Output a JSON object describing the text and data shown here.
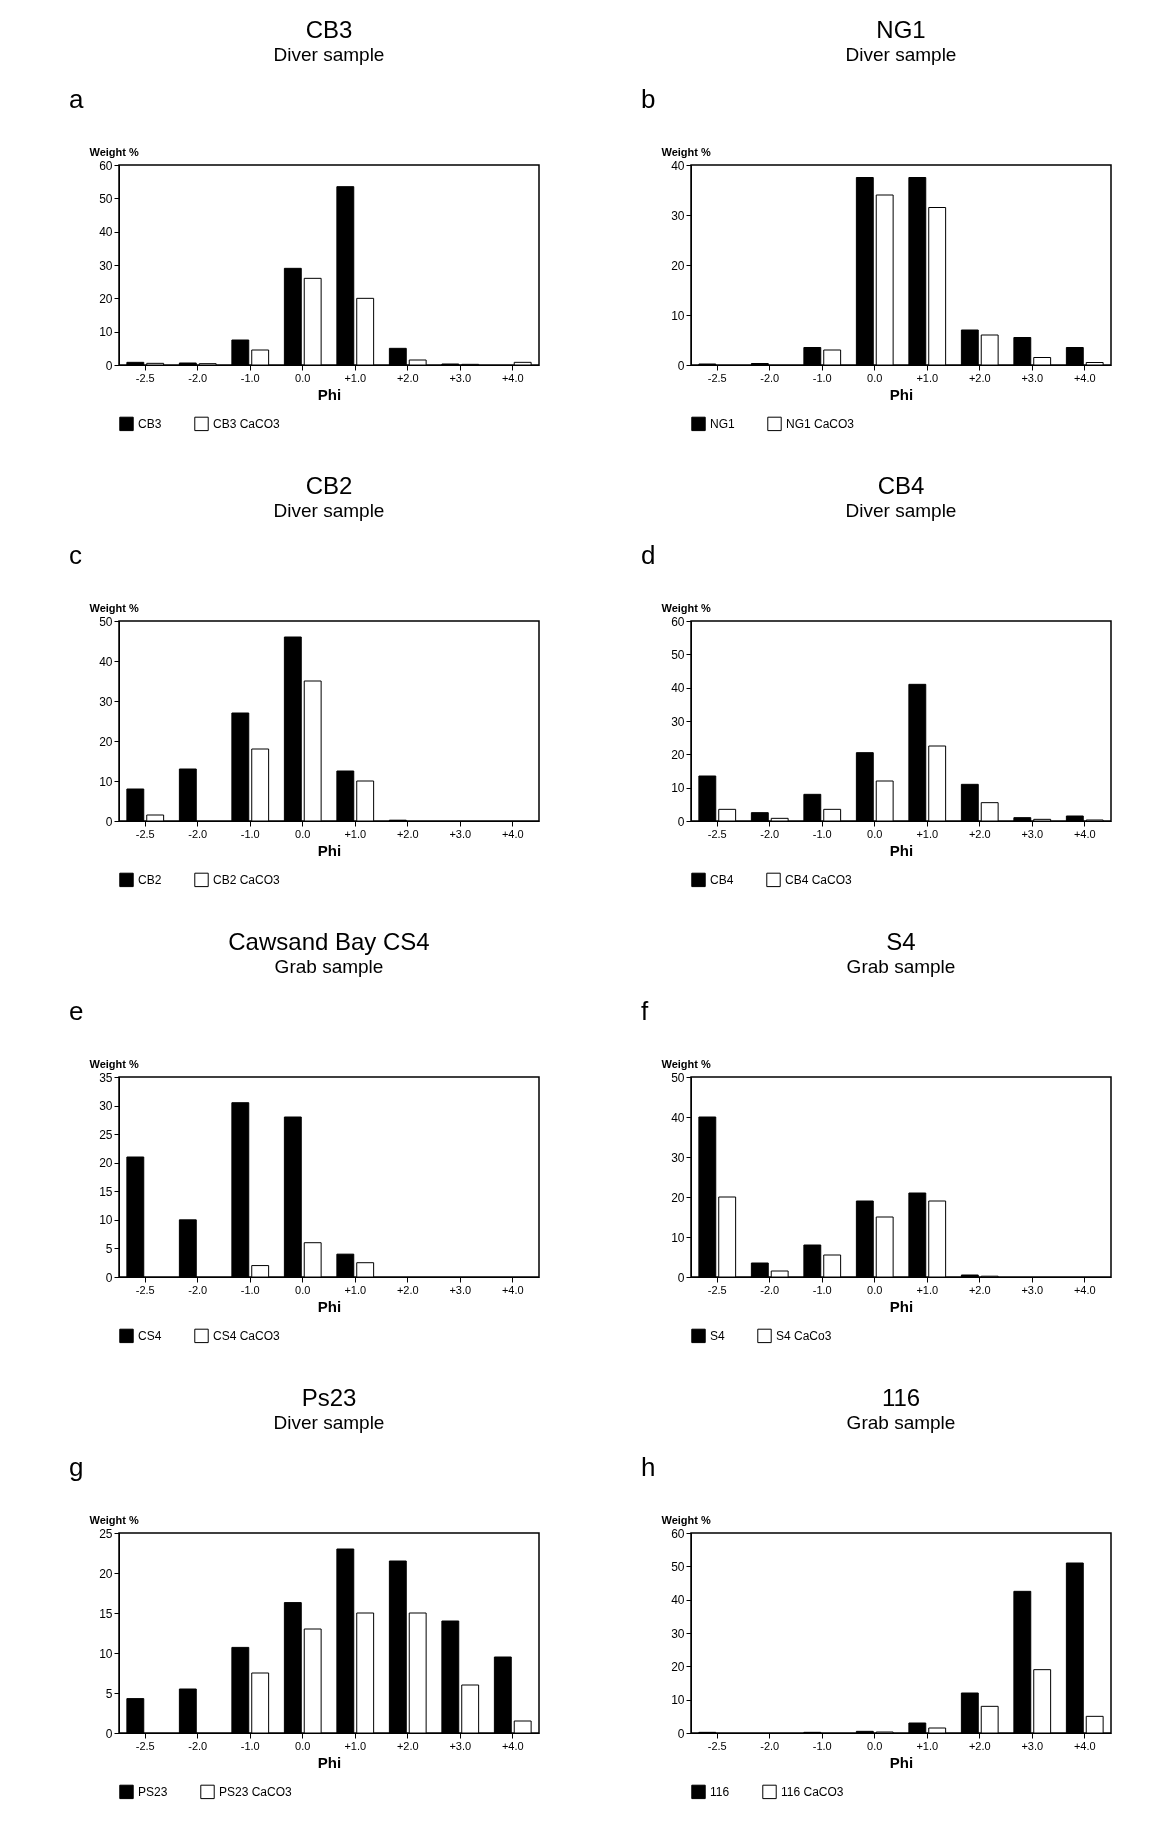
{
  "chart_data": [
    {
      "type": "bar",
      "title": "CB3",
      "subtitle": "Diver sample",
      "annotations": [
        "a"
      ],
      "xlabel": "Phi",
      "ylabel": "Weight %",
      "categories": [
        "-2.5",
        "-2.0",
        "-1.0",
        "0.0",
        "+1.0",
        "+2.0",
        "+3.0",
        "+4.0"
      ],
      "ylim": [
        0,
        60
      ],
      "yticks": [
        0,
        10,
        20,
        30,
        40,
        50,
        60
      ],
      "legend": "bottom",
      "series": [
        {
          "name": "CB3",
          "color": "#000000",
          "values": [
            0.8,
            0.6,
            7.5,
            29,
            53.5,
            5,
            0.3,
            0
          ]
        },
        {
          "name": "CB3 CaCO3",
          "color": "#ffffff",
          "values": [
            0.5,
            0.4,
            4.5,
            26,
            20,
            1.5,
            0.2,
            0.8
          ]
        }
      ]
    },
    {
      "type": "bar",
      "title": "NG1",
      "subtitle": "Diver sample",
      "annotations": [
        "b"
      ],
      "xlabel": "Phi",
      "ylabel": "Weight %",
      "categories": [
        "-2.5",
        "-2.0",
        "-1.0",
        "0.0",
        "+1.0",
        "+2.0",
        "+3.0",
        "+4.0"
      ],
      "ylim": [
        0,
        40
      ],
      "yticks": [
        0,
        10,
        20,
        30,
        40
      ],
      "legend": "bottom",
      "series": [
        {
          "name": "NG1",
          "color": "#000000",
          "values": [
            0.2,
            0.3,
            3.5,
            37.5,
            37.5,
            7,
            5.5,
            3.5
          ]
        },
        {
          "name": "NG1 CaCO3",
          "color": "#ffffff",
          "values": [
            0,
            null,
            3,
            34,
            31.5,
            6,
            1.5,
            0.5
          ]
        }
      ]
    },
    {
      "type": "bar",
      "title": "CB2",
      "subtitle": "Diver sample",
      "annotations": [
        "c"
      ],
      "xlabel": "Phi",
      "ylabel": "Weight %",
      "categories": [
        "-2.5",
        "-2.0",
        "-1.0",
        "0.0",
        "+1.0",
        "+2.0",
        "+3.0",
        "+4.0"
      ],
      "ylim": [
        0,
        50
      ],
      "yticks": [
        0,
        10,
        20,
        30,
        40,
        50
      ],
      "legend": "bottom",
      "series": [
        {
          "name": "CB2",
          "color": "#000000",
          "values": [
            8,
            13,
            27,
            46,
            12.5,
            0.2,
            0,
            0
          ]
        },
        {
          "name": "CB2 CaCO3",
          "color": "#ffffff",
          "values": [
            1.5,
            0,
            18,
            35,
            10,
            0,
            0,
            0
          ]
        }
      ]
    },
    {
      "type": "bar",
      "title": "CB4",
      "subtitle": "Diver sample",
      "annotations": [
        "d"
      ],
      "xlabel": "Phi",
      "ylabel": "Weight %",
      "categories": [
        "-2.5",
        "-2.0",
        "-1.0",
        "0.0",
        "+1.0",
        "+2.0",
        "+3.0",
        "+4.0"
      ],
      "ylim": [
        0,
        60
      ],
      "yticks": [
        0,
        10,
        20,
        30,
        40,
        50,
        60
      ],
      "legend": "bottom",
      "series": [
        {
          "name": "CB4",
          "color": "#000000",
          "values": [
            13.5,
            2.5,
            8,
            20.5,
            41,
            11,
            1,
            1.5
          ]
        },
        {
          "name": "CB4 CaCO3",
          "color": "#ffffff",
          "values": [
            3.5,
            0.8,
            3.5,
            12,
            22.5,
            5.5,
            0.5,
            0.3
          ]
        }
      ]
    },
    {
      "type": "bar",
      "title": "Cawsand Bay CS4",
      "subtitle": "Grab sample",
      "annotations": [
        "e"
      ],
      "xlabel": "Phi",
      "ylabel": "Weight %",
      "categories": [
        "-2.5",
        "-2.0",
        "-1.0",
        "0.0",
        "+1.0",
        "+2.0",
        "+3.0",
        "+4.0"
      ],
      "ylim": [
        0,
        35
      ],
      "yticks": [
        0,
        5,
        10,
        15,
        20,
        25,
        30,
        35
      ],
      "legend": "bottom",
      "series": [
        {
          "name": "CS4",
          "color": "#000000",
          "values": [
            21,
            10,
            30.5,
            28,
            4,
            0,
            0,
            0
          ]
        },
        {
          "name": "CS4 CaCO3",
          "color": "#ffffff",
          "values": [
            0,
            0,
            2,
            6,
            2.5,
            0,
            0,
            0
          ]
        }
      ]
    },
    {
      "type": "bar",
      "title": "S4",
      "subtitle": "Grab sample",
      "annotations": [
        "f"
      ],
      "xlabel": "Phi",
      "ylabel": "Weight %",
      "categories": [
        "-2.5",
        "-2.0",
        "-1.0",
        "0.0",
        "+1.0",
        "+2.0",
        "+3.0",
        "+4.0"
      ],
      "ylim": [
        0,
        50
      ],
      "yticks": [
        0,
        10,
        20,
        30,
        40,
        50
      ],
      "legend": "bottom",
      "series": [
        {
          "name": "S4",
          "color": "#000000",
          "values": [
            40,
            3.5,
            8,
            19,
            21,
            0.5,
            0,
            0
          ]
        },
        {
          "name": "S4 CaCo3",
          "color": "#ffffff",
          "values": [
            20,
            1.5,
            5.5,
            15,
            19,
            0.2,
            0,
            0
          ]
        }
      ]
    },
    {
      "type": "bar",
      "title": "Ps23",
      "subtitle": "Diver sample",
      "annotations": [
        "g"
      ],
      "xlabel": "Phi",
      "ylabel": "Weight %",
      "categories": [
        "-2.5",
        "-2.0",
        "-1.0",
        "0.0",
        "+1.0",
        "+2.0",
        "+3.0",
        "+4.0"
      ],
      "ylim": [
        0,
        25
      ],
      "yticks": [
        0,
        5,
        10,
        15,
        20,
        25
      ],
      "legend": "bottom",
      "series": [
        {
          "name": "PS23",
          "color": "#000000",
          "values": [
            4.3,
            5.5,
            10.7,
            16.3,
            23,
            21.5,
            14,
            9.5
          ]
        },
        {
          "name": "PS23 CaCO3",
          "color": "#ffffff",
          "values": [
            0,
            0,
            7.5,
            13,
            15,
            15,
            6,
            1.5
          ]
        }
      ]
    },
    {
      "type": "bar",
      "title": "116",
      "subtitle": "Grab sample",
      "annotations": [
        "h"
      ],
      "xlabel": "Phi",
      "ylabel": "Weight %",
      "categories": [
        "-2.5",
        "-2.0",
        "-1.0",
        "0.0",
        "+1.0",
        "+2.0",
        "+3.0",
        "+4.0"
      ],
      "ylim": [
        0,
        60
      ],
      "yticks": [
        0,
        10,
        20,
        30,
        40,
        50,
        60
      ],
      "legend": "bottom",
      "series": [
        {
          "name": "116",
          "color": "#000000",
          "values": [
            0.2,
            null,
            0.2,
            0.5,
            3,
            12,
            42.5,
            51
          ]
        },
        {
          "name": "116 CaCO3",
          "color": "#ffffff",
          "values": [
            0,
            0,
            0,
            0.3,
            1.5,
            8,
            19,
            5
          ]
        }
      ]
    }
  ]
}
